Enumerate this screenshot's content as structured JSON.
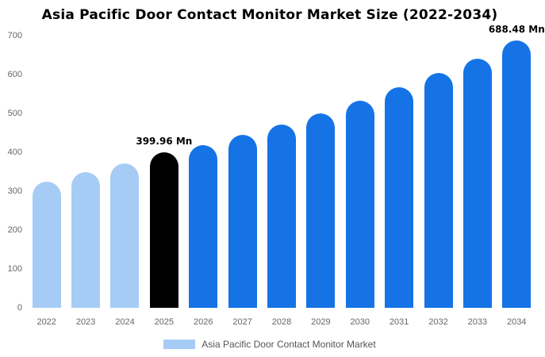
{
  "page": {
    "background": "#ffffff"
  },
  "header": {
    "title": "Asia Pacific Door Contact Monitor Market Size (2022-2034)"
  },
  "legend": {
    "label": "Asia Pacific Door Contact Monitor Market",
    "swatch_color": "#a6ccf5"
  },
  "colors": {
    "light_blue": "#a6ccf5",
    "blue": "#1573e6",
    "highlight_black": "#000000",
    "axis_text": "#666666"
  },
  "chart_data": {
    "type": "bar",
    "title": "Asia Pacific Door Contact Monitor Market Size (2022-2034)",
    "categories": [
      "2022",
      "2023",
      "2024",
      "2025",
      "2026",
      "2027",
      "2028",
      "2029",
      "2030",
      "2031",
      "2032",
      "2033",
      "2034"
    ],
    "values": [
      325,
      349,
      372,
      399.96,
      419,
      444,
      471,
      500,
      533,
      567,
      604,
      641,
      688.48
    ],
    "bar_colors": [
      "#a6ccf5",
      "#a6ccf5",
      "#a6ccf5",
      "#000000",
      "#1573e6",
      "#1573e6",
      "#1573e6",
      "#1573e6",
      "#1573e6",
      "#1573e6",
      "#1573e6",
      "#1573e6",
      "#1573e6"
    ],
    "annotations": [
      {
        "category": "2025",
        "text": "399.96 Mn"
      },
      {
        "category": "2034",
        "text": "688.48 Mn"
      }
    ],
    "xlabel": "",
    "ylabel": "",
    "ylim": [
      0,
      700
    ],
    "yticks": [
      0,
      100,
      200,
      300,
      400,
      500,
      600,
      700
    ],
    "grid": false,
    "legend_position": "bottom",
    "legend_entries": [
      "Asia Pacific Door Contact Monitor Market"
    ],
    "unit": "Mn"
  }
}
